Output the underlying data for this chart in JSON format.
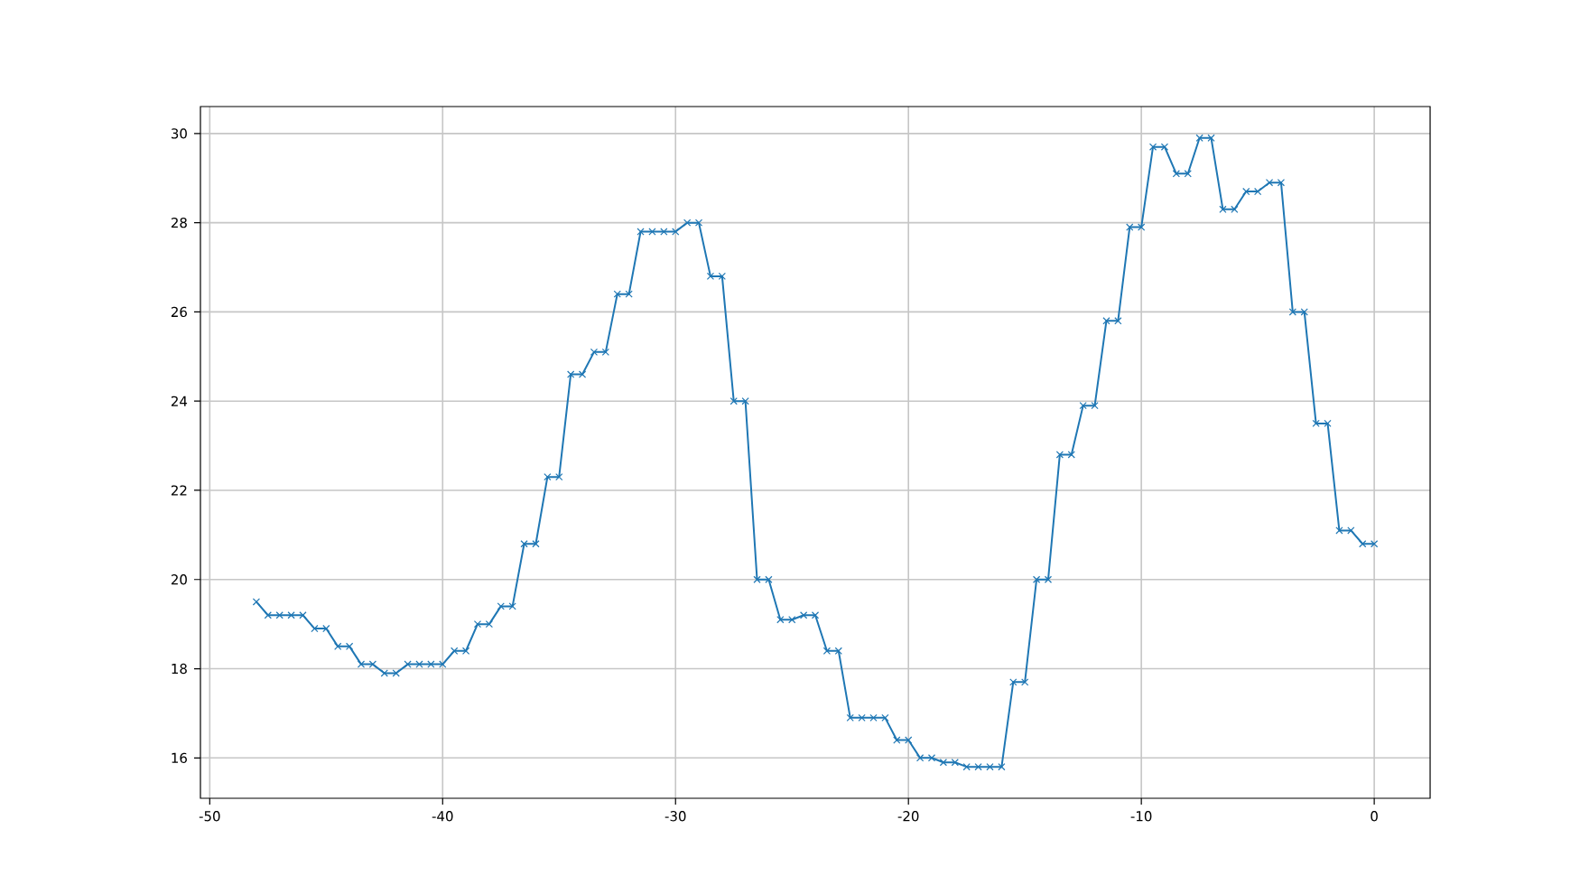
{
  "chart_data": {
    "type": "line",
    "color": "#1f77b4",
    "marker": "cross",
    "line_style": "solid",
    "grid": true,
    "x": [
      -48,
      -47.5,
      -47,
      -46.5,
      -46,
      -45.5,
      -45,
      -44.5,
      -44,
      -43.5,
      -43,
      -42.5,
      -42,
      -41.5,
      -41,
      -40.5,
      -40,
      -39.5,
      -39,
      -38.5,
      -38,
      -37.5,
      -37,
      -36.5,
      -36,
      -35.5,
      -35,
      -34.5,
      -34,
      -33.5,
      -33,
      -32.5,
      -32,
      -31.5,
      -31,
      -30.5,
      -30,
      -29.5,
      -29,
      -28.5,
      -28,
      -27.5,
      -27,
      -26.5,
      -26,
      -25.5,
      -25,
      -24.5,
      -24,
      -23.5,
      -23,
      -22.5,
      -22,
      -21.5,
      -21,
      -20.5,
      -20,
      -19.5,
      -19,
      -18.5,
      -18,
      -17.5,
      -17,
      -16.5,
      -16,
      -15.5,
      -15,
      -14.5,
      -14,
      -13.5,
      -13,
      -12.5,
      -12,
      -11.5,
      -11,
      -10.5,
      -10,
      -9.5,
      -9,
      -8.5,
      -8,
      -7.5,
      -7,
      -6.5,
      -6,
      -5.5,
      -5,
      -4.5,
      -4,
      -3.5,
      -3,
      -2.5,
      -2,
      -1.5,
      -1,
      -0.5,
      0
    ],
    "values": [
      19.5,
      19.2,
      19.2,
      19.2,
      19.2,
      18.9,
      18.9,
      18.5,
      18.5,
      18.1,
      18.1,
      17.9,
      17.9,
      18.1,
      18.1,
      18.1,
      18.1,
      18.4,
      18.4,
      19.0,
      19.0,
      19.4,
      19.4,
      20.8,
      20.8,
      22.3,
      22.3,
      24.6,
      24.6,
      25.1,
      25.1,
      26.4,
      26.4,
      27.8,
      27.8,
      27.8,
      27.8,
      28.0,
      28.0,
      26.8,
      26.8,
      24.0,
      24.0,
      20.0,
      20.0,
      19.1,
      19.1,
      19.2,
      19.2,
      18.4,
      18.4,
      16.9,
      16.9,
      16.9,
      16.9,
      16.4,
      16.4,
      16.0,
      16.0,
      15.9,
      15.9,
      15.8,
      15.8,
      15.8,
      15.8,
      17.7,
      17.7,
      20.0,
      20.0,
      22.8,
      22.8,
      23.9,
      23.9,
      25.8,
      25.8,
      27.9,
      27.9,
      29.7,
      29.7,
      29.1,
      29.1,
      29.9,
      29.9,
      28.3,
      28.3,
      28.7,
      28.7,
      28.9,
      28.9,
      26.0,
      26.0,
      23.5,
      23.5,
      21.1,
      21.1,
      20.8,
      20.8
    ],
    "xlim": [
      -50.4,
      2.4
    ],
    "ylim": [
      15.095,
      30.605
    ],
    "xticks": [
      -50,
      -40,
      -30,
      -20,
      -10,
      0
    ],
    "yticks": [
      16,
      18,
      20,
      22,
      24,
      26,
      28,
      30
    ]
  }
}
